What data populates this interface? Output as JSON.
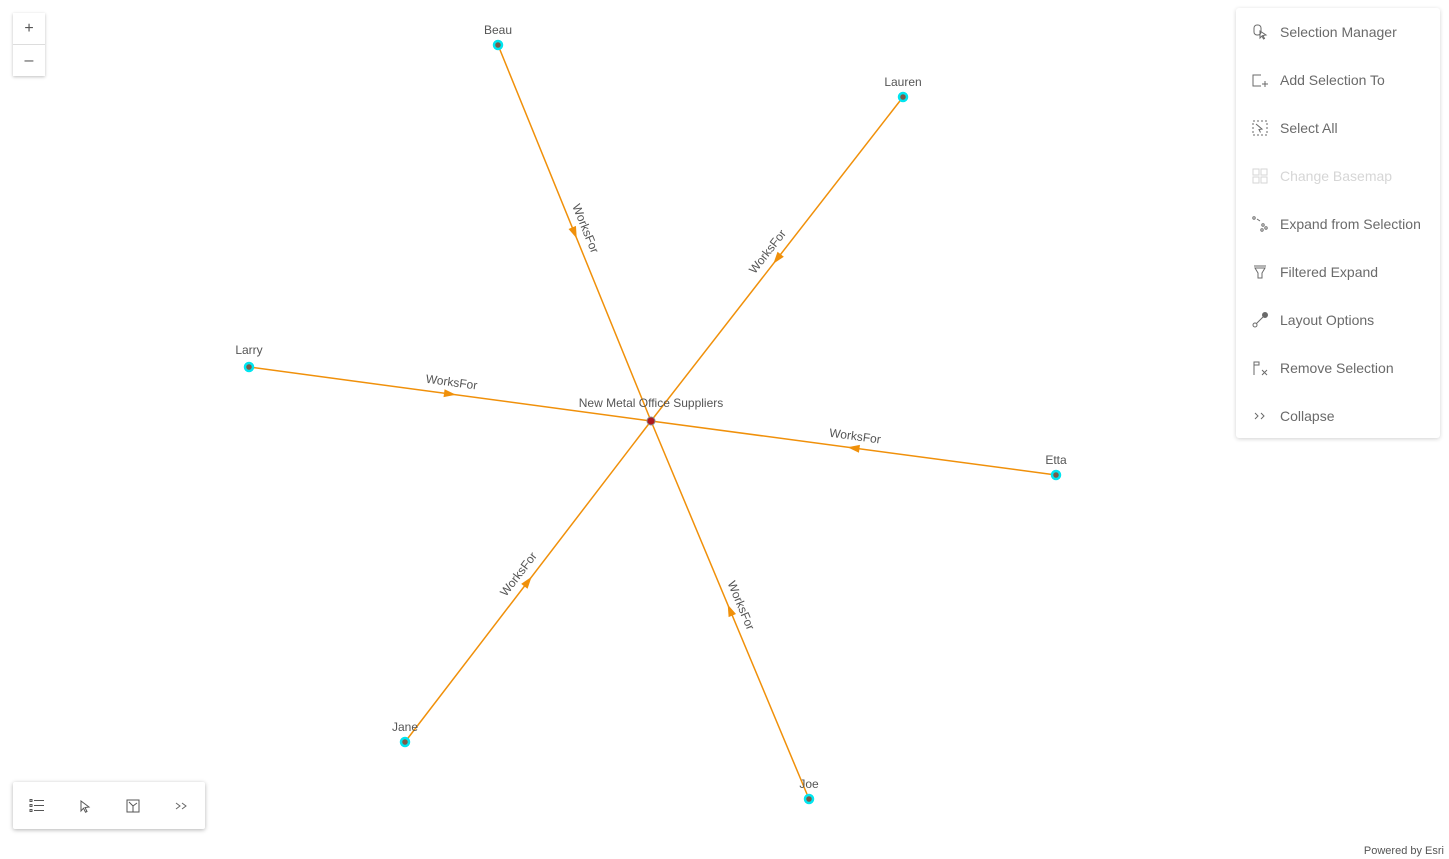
{
  "zoom": {
    "in": "+",
    "out": "–"
  },
  "graph": {
    "center": {
      "label": "New Metal Office Suppliers",
      "color": "#b0181f"
    },
    "nodes": [
      {
        "label": "Beau"
      },
      {
        "label": "Lauren"
      },
      {
        "label": "Larry"
      },
      {
        "label": "Etta"
      },
      {
        "label": "Jane"
      },
      {
        "label": "Joe"
      }
    ],
    "edge_label": "WorksFor",
    "edge_color": "#f0900a",
    "node_ring_color": "#00e5f0",
    "node_fill_color": "#7a5c4a"
  },
  "menu": {
    "items": [
      {
        "label": "Selection Manager",
        "icon": "selection-manager-icon",
        "enabled": true
      },
      {
        "label": "Add Selection To",
        "icon": "add-selection-icon",
        "enabled": true
      },
      {
        "label": "Select All",
        "icon": "select-all-icon",
        "enabled": true
      },
      {
        "label": "Change Basemap",
        "icon": "basemap-icon",
        "enabled": false
      },
      {
        "label": "Expand from Selection",
        "icon": "expand-icon",
        "enabled": true
      },
      {
        "label": "Filtered Expand",
        "icon": "filter-icon",
        "enabled": true
      },
      {
        "label": "Layout Options",
        "icon": "layout-icon",
        "enabled": true
      },
      {
        "label": "Remove Selection",
        "icon": "remove-selection-icon",
        "enabled": true
      },
      {
        "label": "Collapse",
        "icon": "collapse-icon",
        "enabled": true
      }
    ]
  },
  "toolbar": {
    "items": [
      "legend-list-icon",
      "select-cursor-icon",
      "layout-icon",
      "expand-chevrons-icon"
    ]
  },
  "footer": {
    "attribution": "Powered by Esri"
  }
}
